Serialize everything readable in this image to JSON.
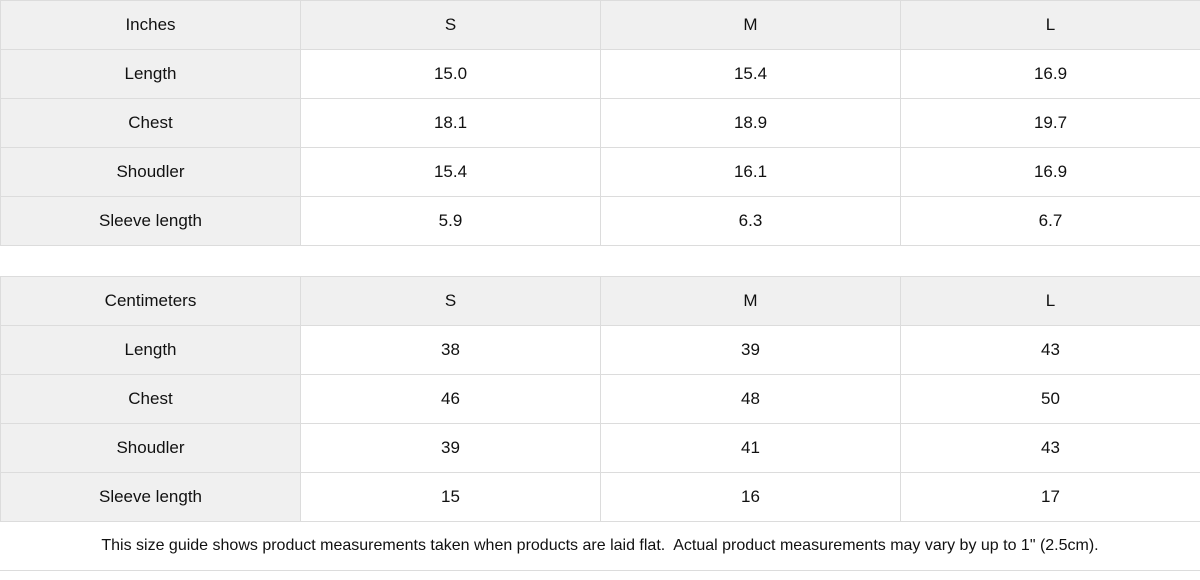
{
  "tables": [
    {
      "unit": "Inches",
      "sizes": [
        "S",
        "M",
        "L"
      ],
      "rows": [
        {
          "label": "Length",
          "values": [
            "15.0",
            "15.4",
            "16.9"
          ]
        },
        {
          "label": "Chest",
          "values": [
            "18.1",
            "18.9",
            "19.7"
          ]
        },
        {
          "label": "Shoudler",
          "values": [
            "15.4",
            "16.1",
            "16.9"
          ]
        },
        {
          "label": "Sleeve length",
          "values": [
            "5.9",
            "6.3",
            "6.7"
          ]
        }
      ]
    },
    {
      "unit": "Centimeters",
      "sizes": [
        "S",
        "M",
        "L"
      ],
      "rows": [
        {
          "label": "Length",
          "values": [
            "38",
            "39",
            "43"
          ]
        },
        {
          "label": "Chest",
          "values": [
            "46",
            "48",
            "50"
          ]
        },
        {
          "label": "Shoudler",
          "values": [
            "39",
            "41",
            "43"
          ]
        },
        {
          "label": "Sleeve length",
          "values": [
            "15",
            "16",
            "17"
          ]
        }
      ]
    }
  ],
  "footer": {
    "note": "This size guide shows product measurements taken when products are laid flat.  Actual product measurements may vary by up to 1\" (2.5cm)."
  },
  "colors": {
    "cell_header_bg": "#f0f0f0",
    "border": "#dcdcdc",
    "text": "#111111",
    "background": "#ffffff"
  }
}
